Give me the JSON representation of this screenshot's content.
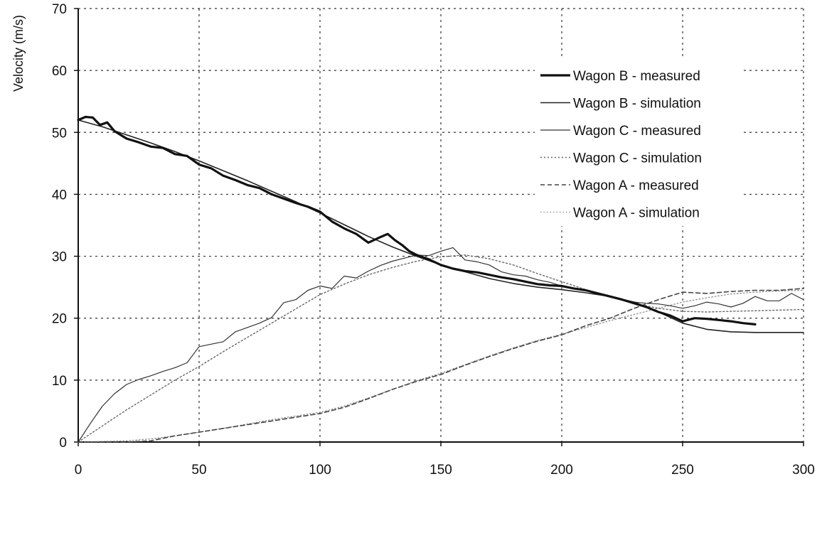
{
  "chart_data": {
    "type": "line",
    "title": "",
    "xlabel": "",
    "ylabel": "Velocity (m/s)",
    "xlim": [
      0,
      300
    ],
    "ylim": [
      0,
      70
    ],
    "xticks": [
      0,
      50,
      100,
      150,
      200,
      250,
      300
    ],
    "yticks": [
      0,
      10,
      20,
      30,
      40,
      50,
      60,
      70
    ],
    "grid": true,
    "legend_position": "top-right",
    "series": [
      {
        "name": "Wagon B - measured",
        "color": "#111111",
        "style": "thick",
        "x": [
          0,
          3,
          6,
          9,
          12,
          15,
          20,
          25,
          30,
          35,
          40,
          45,
          50,
          55,
          60,
          65,
          70,
          75,
          80,
          85,
          90,
          95,
          100,
          105,
          110,
          115,
          120,
          125,
          128,
          131,
          134,
          137,
          140,
          145,
          150,
          155,
          160,
          165,
          170,
          175,
          180,
          185,
          190,
          195,
          200,
          205,
          210,
          215,
          220,
          225,
          230,
          235,
          240,
          245,
          250,
          255,
          260,
          265,
          270,
          275,
          280
        ],
        "y": [
          52,
          52.5,
          52.4,
          51.2,
          51.6,
          50.2,
          49,
          48.4,
          47.7,
          47.5,
          46.5,
          46.2,
          44.8,
          44.2,
          43,
          42.3,
          41.5,
          41,
          40,
          39.3,
          38.6,
          38,
          37.2,
          35.6,
          34.5,
          33.6,
          32.2,
          33.1,
          33.6,
          32.6,
          31.8,
          30.8,
          30.2,
          29.5,
          28.6,
          28,
          27.6,
          27.4,
          27,
          26.6,
          26.3,
          25.9,
          25.5,
          25.3,
          25.2,
          24.8,
          24.5,
          24,
          23.5,
          23,
          22.4,
          21.8,
          21,
          20.4,
          19.5,
          20,
          19.9,
          19.7,
          19.5,
          19.2,
          19
        ]
      },
      {
        "name": "Wagon B - simulation",
        "color": "#222222",
        "style": "solid",
        "x": [
          0,
          10,
          20,
          30,
          40,
          50,
          60,
          70,
          80,
          90,
          100,
          110,
          120,
          130,
          140,
          150,
          160,
          170,
          180,
          190,
          200,
          210,
          220,
          230,
          240,
          250,
          260,
          270,
          280,
          290,
          300
        ],
        "y": [
          52,
          50.9,
          49.6,
          48.3,
          46.9,
          45.4,
          43.8,
          42.2,
          40.5,
          38.8,
          37,
          35.1,
          33.2,
          31.5,
          30,
          28.6,
          27.5,
          26.4,
          25.6,
          25,
          24.6,
          24.1,
          23.5,
          22.6,
          21,
          19.2,
          18.2,
          17.8,
          17.7,
          17.7,
          17.7
        ]
      },
      {
        "name": "Wagon C - measured",
        "color": "#333333",
        "style": "thin",
        "x": [
          0,
          5,
          10,
          15,
          20,
          25,
          30,
          35,
          40,
          45,
          50,
          55,
          60,
          65,
          70,
          75,
          80,
          85,
          90,
          95,
          100,
          105,
          110,
          115,
          120,
          125,
          130,
          135,
          140,
          145,
          150,
          155,
          160,
          165,
          170,
          175,
          180,
          185,
          190,
          195,
          200,
          205,
          210,
          215,
          220,
          225,
          230,
          235,
          240,
          245,
          250,
          255,
          260,
          265,
          270,
          275,
          280,
          285,
          290,
          295,
          300
        ],
        "y": [
          0,
          3,
          5.8,
          7.8,
          9.3,
          10.1,
          10.7,
          11.4,
          12,
          12.8,
          15.4,
          15.8,
          16.2,
          17.8,
          18.5,
          19.2,
          20.1,
          22.5,
          23,
          24.5,
          25.2,
          24.8,
          26.8,
          26.5,
          27.6,
          28.5,
          29.2,
          29.7,
          30.2,
          30.1,
          30.8,
          31.4,
          29.4,
          29.1,
          28.6,
          27.5,
          27,
          26.8,
          26.2,
          25.8,
          25.2,
          24.8,
          24.5,
          24,
          23.4,
          23,
          22.6,
          22.4,
          22.3,
          22,
          21.6,
          22,
          22.6,
          22.3,
          21.8,
          22.4,
          23.5,
          22.8,
          22.8,
          24,
          23
        ]
      },
      {
        "name": "Wagon C - simulation",
        "color": "#666666",
        "style": "dotted",
        "x": [
          0,
          10,
          20,
          30,
          40,
          50,
          60,
          70,
          80,
          90,
          100,
          110,
          120,
          130,
          140,
          150,
          160,
          170,
          180,
          190,
          200,
          210,
          220,
          230,
          240,
          250,
          260,
          270,
          280,
          290,
          300
        ],
        "y": [
          0,
          2.6,
          5.2,
          7.6,
          10,
          12.2,
          14.6,
          16.9,
          19.2,
          21.5,
          23.8,
          25.5,
          27,
          28.2,
          29.2,
          29.9,
          30.2,
          29.6,
          28.6,
          27.2,
          25.9,
          24.6,
          23.4,
          22.4,
          21.6,
          21.1,
          21,
          21.1,
          21.2,
          21.3,
          21.4
        ]
      },
      {
        "name": "Wagon A - measured",
        "color": "#444444",
        "style": "dashed",
        "x": [
          0,
          20,
          30,
          40,
          50,
          60,
          70,
          80,
          90,
          100,
          110,
          120,
          130,
          140,
          150,
          160,
          170,
          180,
          190,
          200,
          210,
          220,
          230,
          240,
          250,
          260,
          270,
          280,
          290,
          300
        ],
        "y": [
          0,
          0,
          0.2,
          1,
          1.6,
          2.2,
          2.8,
          3.4,
          4,
          4.6,
          5.6,
          7,
          8.5,
          9.8,
          10.9,
          12.4,
          13.8,
          15.1,
          16.3,
          17.3,
          18.8,
          20,
          21.6,
          23,
          24.2,
          24,
          24.3,
          24.5,
          24.5,
          24.8
        ]
      },
      {
        "name": "Wagon A - simulation",
        "color": "#8a8a8a",
        "style": "dotted-light",
        "x": [
          0,
          20,
          30,
          40,
          50,
          60,
          70,
          80,
          90,
          100,
          110,
          120,
          130,
          140,
          150,
          160,
          170,
          180,
          190,
          200,
          210,
          220,
          230,
          240,
          250,
          260,
          270,
          280,
          290,
          300
        ],
        "y": [
          0,
          0.2,
          0.5,
          1,
          1.6,
          2.2,
          2.9,
          3.6,
          4.2,
          4.8,
          5.8,
          7.1,
          8.5,
          9.9,
          11.1,
          12.5,
          13.9,
          15.2,
          16.4,
          17.4,
          18.5,
          19.6,
          20.6,
          21.6,
          22.6,
          23.3,
          23.9,
          24.2,
          24.4,
          24.5
        ]
      }
    ]
  }
}
